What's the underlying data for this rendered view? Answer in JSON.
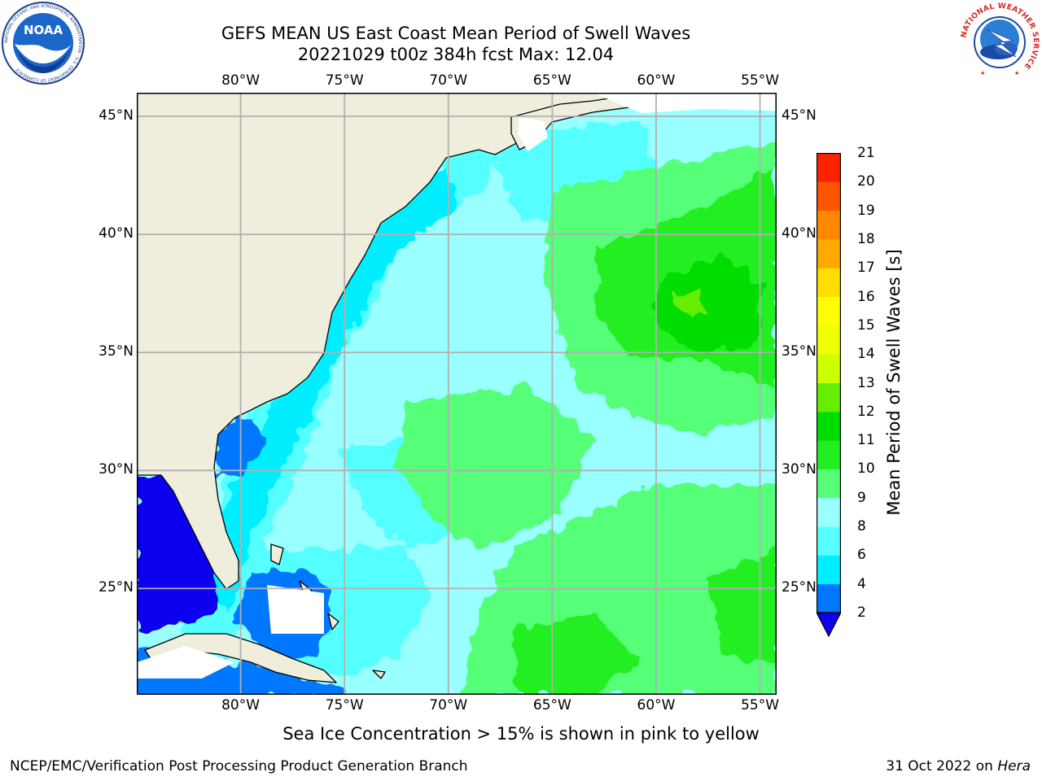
{
  "header": {
    "title_line1": "GEFS MEAN US East Coast Mean Period of Swell Waves",
    "title_line2": "20221029 t00z 384h fcst   Max: 12.04"
  },
  "logos": {
    "noaa_text": "NOAA",
    "noaa_ring_text": "NATIONAL OCEANIC AND ATMOSPHERIC ADMINISTRATION · U.S. DEPARTMENT OF COMMERCE",
    "nws_ring_text": "NATIONAL WEATHER SERVICE"
  },
  "map": {
    "projection": "cylindrical",
    "lon_range": [
      -85,
      -54.2
    ],
    "lat_range": [
      20.5,
      46
    ],
    "lon_ticks": [
      {
        "value": -80,
        "label": "80°W"
      },
      {
        "value": -75,
        "label": "75°W"
      },
      {
        "value": -70,
        "label": "70°W"
      },
      {
        "value": -65,
        "label": "65°W"
      },
      {
        "value": -60,
        "label": "60°W"
      },
      {
        "value": -55,
        "label": "55°W"
      }
    ],
    "lat_ticks": [
      {
        "value": 45,
        "label": "45°N"
      },
      {
        "value": 40,
        "label": "40°N"
      },
      {
        "value": 35,
        "label": "35°N"
      },
      {
        "value": 30,
        "label": "30°N"
      },
      {
        "value": 25,
        "label": "25°N"
      }
    ],
    "grid": true,
    "colors": {
      "land": "#efeedd",
      "coastline": "#000000",
      "gridline": "#b0b0b0",
      "missing": "#ffffff"
    }
  },
  "colorbar": {
    "title": "Mean Period of Swell Waves [s]",
    "labels": [
      "2",
      "4",
      "6",
      "8",
      "9",
      "10",
      "11",
      "12",
      "13",
      "14",
      "15",
      "16",
      "17",
      "18",
      "19",
      "20",
      "21"
    ],
    "colors": [
      "#0077ff",
      "#00eeff",
      "#55ffff",
      "#99ffff",
      "#55ff77",
      "#22ee22",
      "#00dd00",
      "#66ee00",
      "#ccff00",
      "#eeff00",
      "#ffff00",
      "#ffdd00",
      "#ffaa00",
      "#ff8800",
      "#ff5500",
      "#ff2200"
    ],
    "under_color": "#1100ee"
  },
  "footer": {
    "sea_ice_note": "Sea Ice Concentration > 15% is shown in pink to yellow",
    "credit": "NCEP/EMC/Verification Post Processing Product Generation Branch",
    "date": "31 Oct 2022 on",
    "host": "Hera"
  }
}
